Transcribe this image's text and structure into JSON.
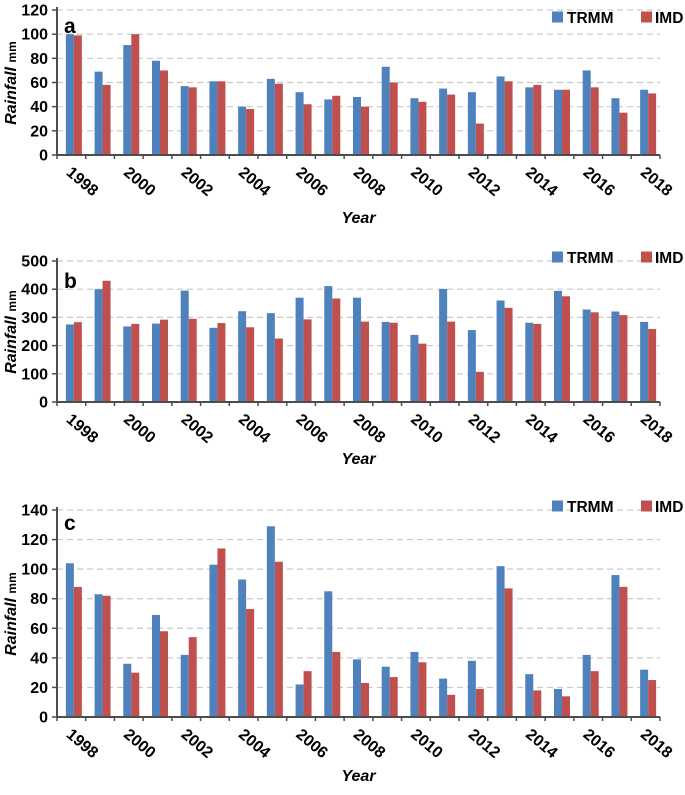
{
  "figure": {
    "background": "#ffffff",
    "xlabel": "Year",
    "ylabel": "Rainfall",
    "ylabel_unit": "mm"
  },
  "style": {
    "trmm_color": "#4F81BD",
    "imd_color": "#C0504D",
    "axis_color": "#4d4d4d",
    "grid_color": "#c9c9c9",
    "text_color": "#000000"
  },
  "chart_data": [
    {
      "type": "bar",
      "panel_label": "a",
      "ylabel": "Rainfall",
      "ylabel_unit": "mm",
      "xlabel": "Year",
      "categories": [
        1998,
        1999,
        2000,
        2001,
        2002,
        2003,
        2004,
        2005,
        2006,
        2007,
        2008,
        2009,
        2010,
        2011,
        2012,
        2013,
        2014,
        2015,
        2016,
        2017,
        2018
      ],
      "xtick_labels": [
        "1998",
        "2000",
        "2002",
        "2004",
        "2006",
        "2008",
        "2010",
        "2012",
        "2014",
        "2016",
        "2018"
      ],
      "ylim": [
        0,
        120
      ],
      "ytick_interval": 20,
      "ytick_labels": [
        "0",
        "20",
        "40",
        "60",
        "80",
        "100",
        "120"
      ],
      "grid": "horizontal-dashed",
      "legend_position": "top-right",
      "series": [
        {
          "name": "TRMM",
          "color": "#4F81BD",
          "values": [
            100,
            69,
            91,
            78,
            57,
            61,
            40,
            63,
            52,
            46,
            48,
            73,
            47,
            55,
            52,
            65,
            56,
            54,
            70,
            47,
            54
          ]
        },
        {
          "name": "IMD",
          "color": "#C0504D",
          "values": [
            99,
            58,
            100,
            70,
            56,
            61,
            38,
            59,
            42,
            49,
            40,
            60,
            44,
            50,
            26,
            61,
            58,
            54,
            56,
            35,
            51
          ]
        }
      ]
    },
    {
      "type": "bar",
      "panel_label": "b",
      "ylabel": "Rainfall",
      "ylabel_unit": "mm",
      "xlabel": "Year",
      "categories": [
        1998,
        1999,
        2000,
        2001,
        2002,
        2003,
        2004,
        2005,
        2006,
        2007,
        2008,
        2009,
        2010,
        2011,
        2012,
        2013,
        2014,
        2015,
        2016,
        2017,
        2018
      ],
      "xtick_labels": [
        "1998",
        "2000",
        "2002",
        "2004",
        "2006",
        "2008",
        "2010",
        "2012",
        "2014",
        "2016",
        "2018"
      ],
      "ylim": [
        0,
        500
      ],
      "ytick_interval": 100,
      "ytick_labels": [
        "0",
        "100",
        "200",
        "300",
        "400",
        "500"
      ],
      "grid": "horizontal-dashed",
      "legend_position": "top-right",
      "series": [
        {
          "name": "TRMM",
          "color": "#4F81BD",
          "values": [
            275,
            400,
            268,
            278,
            395,
            263,
            322,
            315,
            370,
            411,
            370,
            284,
            238,
            401,
            255,
            360,
            281,
            394,
            328,
            321,
            284
          ]
        },
        {
          "name": "IMD",
          "color": "#C0504D",
          "values": [
            283,
            430,
            277,
            292,
            295,
            280,
            265,
            225,
            293,
            367,
            285,
            281,
            207,
            285,
            107,
            334,
            277,
            375,
            318,
            308,
            259
          ]
        }
      ]
    },
    {
      "type": "bar",
      "panel_label": "c",
      "ylabel": "Rainfall",
      "ylabel_unit": "mm",
      "xlabel": "Year",
      "categories": [
        1998,
        1999,
        2000,
        2001,
        2002,
        2003,
        2004,
        2005,
        2006,
        2007,
        2008,
        2009,
        2010,
        2011,
        2012,
        2013,
        2014,
        2015,
        2016,
        2017,
        2018
      ],
      "xtick_labels": [
        "1998",
        "2000",
        "2002",
        "2004",
        "2006",
        "2008",
        "2010",
        "2012",
        "2014",
        "2016",
        "2018"
      ],
      "ylim": [
        0,
        140
      ],
      "ytick_interval": 20,
      "ytick_labels": [
        "0",
        "20",
        "40",
        "60",
        "80",
        "100",
        "120",
        "140"
      ],
      "grid": "horizontal-dashed",
      "legend_position": "top-right",
      "series": [
        {
          "name": "TRMM",
          "color": "#4F81BD",
          "values": [
            104,
            83,
            36,
            69,
            42,
            103,
            93,
            129,
            22,
            85,
            39,
            34,
            44,
            26,
            38,
            102,
            29,
            19,
            42,
            96,
            32
          ]
        },
        {
          "name": "IMD",
          "color": "#C0504D",
          "values": [
            88,
            82,
            30,
            58,
            54,
            114,
            73,
            105,
            31,
            44,
            23,
            27,
            37,
            15,
            19,
            87,
            18,
            14,
            31,
            88,
            25
          ]
        }
      ]
    }
  ],
  "legend": {
    "items": [
      {
        "label": "TRMM",
        "color": "#4F81BD"
      },
      {
        "label": "IMD",
        "color": "#C0504D"
      }
    ]
  }
}
